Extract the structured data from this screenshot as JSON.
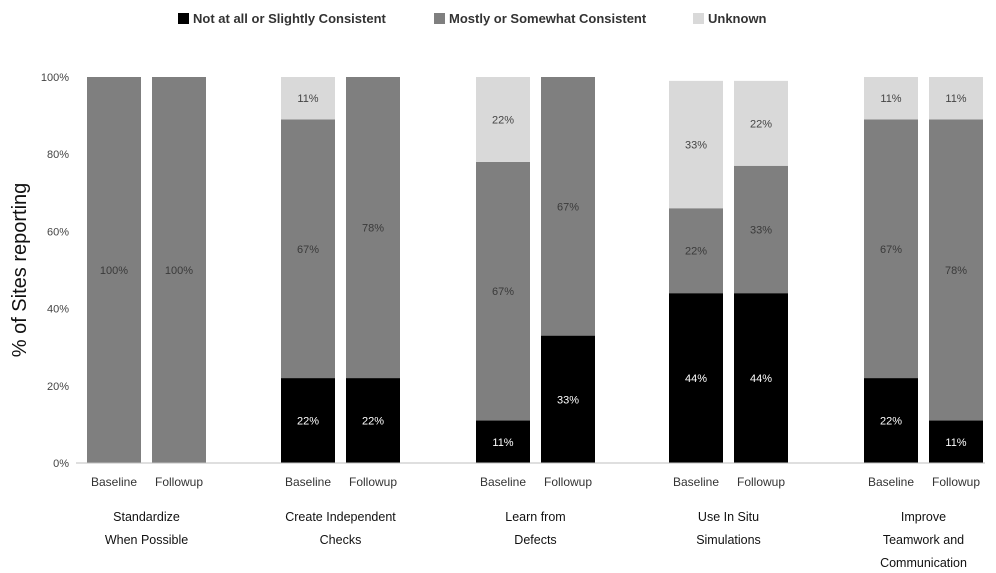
{
  "chart_data": {
    "type": "bar",
    "stacked": true,
    "ylabel": "% of Sites reporting",
    "ylim": [
      0,
      100
    ],
    "yticks": [
      "0%",
      "20%",
      "40%",
      "60%",
      "80%",
      "100%"
    ],
    "periods": [
      "Baseline",
      "Followup"
    ],
    "groups": [
      {
        "label": [
          "Standardize",
          "When Possible"
        ]
      },
      {
        "label": [
          "Create Independent",
          "Checks"
        ]
      },
      {
        "label": [
          "Learn from",
          "Defects"
        ]
      },
      {
        "label": [
          "Use In Situ",
          "Simulations"
        ]
      },
      {
        "label": [
          "Improve",
          "Teamwork and",
          "Communication"
        ]
      }
    ],
    "series": [
      {
        "name": "Not at all or Slightly Consistent",
        "color": "#000000",
        "label_color": "#ffffff",
        "values": [
          [
            0,
            0
          ],
          [
            22,
            22
          ],
          [
            11,
            33
          ],
          [
            44,
            44
          ],
          [
            22,
            11
          ]
        ]
      },
      {
        "name": "Mostly or Somewhat Consistent",
        "color": "#7f7f7f",
        "label_color": "#3a3a3a",
        "values": [
          [
            100,
            100
          ],
          [
            67,
            78
          ],
          [
            67,
            67
          ],
          [
            22,
            33
          ],
          [
            67,
            78
          ]
        ]
      },
      {
        "name": "Unknown",
        "color": "#d9d9d9",
        "label_color": "#444444",
        "values": [
          [
            0,
            0
          ],
          [
            11,
            0
          ],
          [
            22,
            0
          ],
          [
            33,
            22
          ],
          [
            11,
            11
          ]
        ]
      }
    ],
    "legend_position": "top",
    "grid": false
  }
}
